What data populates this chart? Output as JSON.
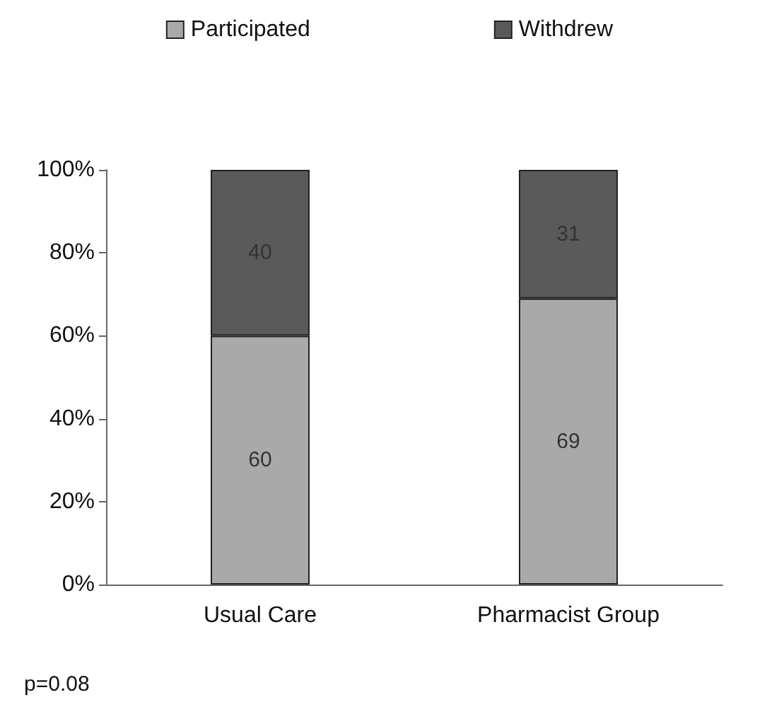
{
  "chart_data": {
    "type": "bar",
    "stacked": true,
    "categories": [
      "Usual Care",
      "Pharmacist Group"
    ],
    "series": [
      {
        "name": "Participated",
        "color": "#a9a9a9",
        "values": [
          60,
          69
        ]
      },
      {
        "name": "Withdrew",
        "color": "#5a5a5a",
        "values": [
          40,
          31
        ]
      }
    ],
    "ylim": [
      0,
      100
    ],
    "yticks": [
      {
        "value": 0,
        "label": "0%"
      },
      {
        "value": 20,
        "label": "20%"
      },
      {
        "value": 40,
        "label": "40%"
      },
      {
        "value": 60,
        "label": "60%"
      },
      {
        "value": 80,
        "label": "80%"
      },
      {
        "value": 100,
        "label": "100%"
      }
    ],
    "data_labels": true,
    "legend": "top",
    "grid": false,
    "annotations": [
      "p=0.08"
    ]
  }
}
